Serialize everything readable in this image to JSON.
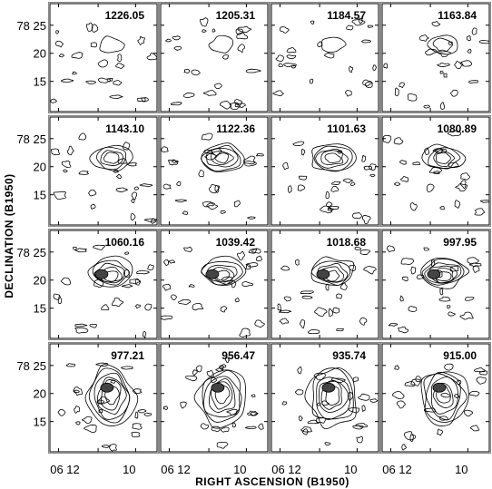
{
  "chart_data": {
    "type": "contour",
    "grid": {
      "rows": 4,
      "cols": 4
    },
    "xlabel": "RIGHT ASCENSION (B1950)",
    "ylabel": "DECLINATION (B1950)",
    "y_ticks": [
      "78 25",
      "20",
      "15"
    ],
    "x_ticks": [
      "06 12",
      "10"
    ],
    "panels": [
      {
        "velocity": "1226.05",
        "source_level": 1
      },
      {
        "velocity": "1205.31",
        "source_level": 1
      },
      {
        "velocity": "1184.57",
        "source_level": 1
      },
      {
        "velocity": "1163.84",
        "source_level": 2
      },
      {
        "velocity": "1143.10",
        "source_level": 4
      },
      {
        "velocity": "1122.36",
        "source_level": 5
      },
      {
        "velocity": "1101.63",
        "source_level": 5
      },
      {
        "velocity": "1080.89",
        "source_level": 4
      },
      {
        "velocity": "1060.16",
        "source_level": 5
      },
      {
        "velocity": "1039.42",
        "source_level": 5
      },
      {
        "velocity": "1018.68",
        "source_level": 5
      },
      {
        "velocity": "997.95",
        "source_level": 6
      },
      {
        "velocity": "977.21",
        "source_level": 6
      },
      {
        "velocity": "956.47",
        "source_level": 6
      },
      {
        "velocity": "935.74",
        "source_level": 6
      },
      {
        "velocity": "915.00",
        "source_level": 6
      }
    ]
  }
}
